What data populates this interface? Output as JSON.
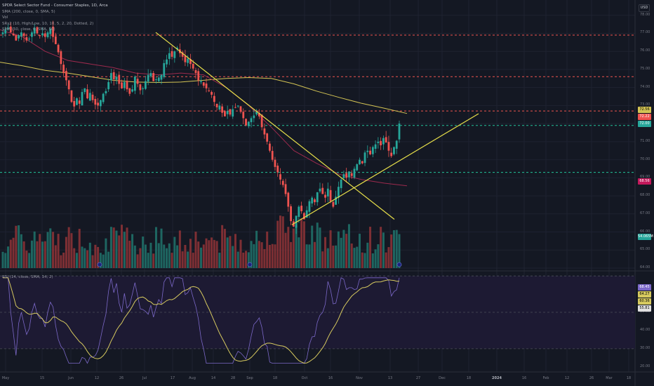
{
  "header": {
    "title": "SPDR Select Sector Fund - Consumer Staples, 1D, Arca",
    "indicators": [
      "SMA (200, close, 0, SMA, 5)",
      "Vol",
      "SRs2 (10, High/Low, 10, 10, 5, 2, 20, Dotted, 2)",
      "SMA (50, close, 0, SMA, 50)"
    ],
    "currency": "USD"
  },
  "rsi_panel": {
    "label": "RSI (14, close, SMA, 14, 2)"
  },
  "colors": {
    "background": "#141823",
    "up": "#26a69a",
    "down": "#ef5350",
    "sma200": "#d4c454",
    "sma50": "#9c2a4d",
    "trendline": "#e8e04a",
    "resistance": "#f0544f",
    "support": "#22c39a",
    "rsi_line": "#7b68c8",
    "rsi_ma": "#d6c95f"
  },
  "chart_data": {
    "type": "candlestick",
    "price_axis": {
      "ticks": [
        64.0,
        65.0,
        66.0,
        67.0,
        68.0,
        69.0,
        70.0,
        71.0,
        72.0,
        73.0,
        74.0,
        75.0,
        76.0,
        77.0,
        78.0
      ],
      "range": [
        64.0,
        78.3
      ]
    },
    "x_labels": [
      "May",
      "15",
      "Jun",
      "12",
      "26",
      "Jul",
      "17",
      "Aug",
      "14",
      "28",
      "Sep",
      "18",
      "Oct",
      "16",
      "Nov",
      "13",
      "27",
      "Dec",
      "18",
      "2024",
      "16",
      "Feb",
      "12",
      "26",
      "Mar",
      "18",
      "Apr",
      "15",
      "May"
    ],
    "price_tags": [
      {
        "value": "72.56",
        "kind": "sma200"
      },
      {
        "value": "72.22",
        "kind": "resistance"
      },
      {
        "value": "72.00",
        "kind": "last"
      },
      {
        "value": "68.56",
        "kind": "sma50"
      },
      {
        "value": "54.065M",
        "kind": "volume"
      }
    ],
    "horizontal_levels": [
      {
        "value": 76.9,
        "kind": "resistance"
      },
      {
        "value": 74.6,
        "kind": "resistance"
      },
      {
        "value": 72.7,
        "kind": "resistance"
      },
      {
        "value": 71.9,
        "kind": "support"
      },
      {
        "value": 69.3,
        "kind": "support"
      }
    ],
    "rsi": {
      "ticks": [
        20.0,
        30.0,
        40.0,
        50.0,
        55.81,
        60.36,
        64.27,
        68.45
      ],
      "tags": [
        "68.45",
        "64.27",
        "60.36",
        "55.81"
      ],
      "levels": [
        70,
        50,
        30
      ],
      "range": [
        18,
        72
      ]
    },
    "sma200": [
      75.4,
      75.2,
      74.95,
      74.8,
      74.6,
      74.4,
      74.3,
      74.28,
      74.3,
      74.4,
      74.5,
      74.55,
      74.5,
      74.2,
      73.8,
      73.45,
      73.12,
      72.85,
      72.56
    ],
    "sma50": [
      77.2,
      76.8,
      76.0,
      75.5,
      75.3,
      75.1,
      74.8,
      74.7,
      74.8,
      74.7,
      74.0,
      73.0,
      71.8,
      70.5,
      69.8,
      69.2,
      68.9,
      68.7,
      68.56
    ],
    "candles": [
      77.05,
      77.2,
      77.3,
      77.05,
      76.9,
      76.6,
      76.9,
      77.05,
      76.85,
      76.6,
      76.7,
      77.05,
      77.3,
      77.0,
      76.85,
      77.0,
      76.8,
      77.05,
      77.25,
      76.8,
      76.4,
      75.95,
      75.3,
      74.8,
      74.4,
      73.9,
      73.2,
      72.95,
      73.4,
      73.1,
      73.75,
      73.95,
      73.4,
      73.7,
      73.3,
      73.05,
      73.0,
      73.3,
      73.65,
      73.8,
      74.3,
      74.8,
      74.45,
      74.6,
      74.2,
      73.95,
      74.3,
      73.9,
      73.65,
      73.9,
      74.6,
      74.2,
      73.85,
      73.95,
      74.35,
      74.7,
      74.8,
      74.35,
      74.45,
      74.55,
      74.7,
      75.35,
      75.55,
      75.9,
      75.7,
      76.0,
      76.2,
      75.9,
      75.7,
      75.4,
      75.6,
      75.3,
      75.05,
      74.8,
      74.4,
      74.35,
      74.1,
      73.95,
      73.8,
      73.6,
      73.2,
      72.9,
      73.0,
      72.6,
      72.4,
      72.7,
      72.5,
      72.8,
      72.9,
      73.0,
      72.65,
      72.3,
      71.9,
      72.1,
      72.3,
      72.45,
      72.65,
      72.4,
      71.8,
      71.4,
      71.0,
      70.5,
      70.0,
      69.6,
      69.3,
      68.9,
      68.6,
      68.1,
      67.4,
      66.6,
      66.3,
      66.9,
      67.4,
      67.15,
      66.7,
      67.2,
      67.7,
      67.9,
      67.65,
      68.2,
      68.4,
      68.1,
      67.9,
      68.4,
      67.7,
      67.4,
      67.95,
      68.5,
      68.9,
      69.2,
      69.0,
      69.35,
      69.1,
      69.5,
      69.75,
      70.0,
      69.8,
      70.4,
      70.5,
      70.3,
      70.7,
      70.85,
      71.0,
      70.8,
      71.2,
      70.95,
      70.5,
      70.2,
      70.7,
      71.05,
      72.0
    ]
  }
}
